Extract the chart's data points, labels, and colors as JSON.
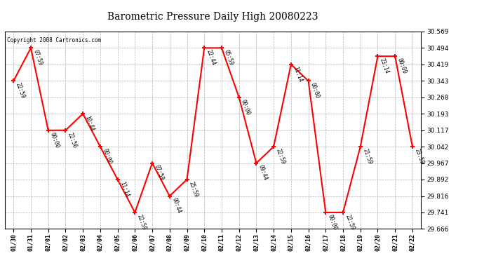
{
  "title": "Barometric Pressure Daily High 20080223",
  "copyright": "Copyright 2008 Cartronics.com",
  "dates": [
    "01/30",
    "01/31",
    "02/01",
    "02/02",
    "02/03",
    "02/04",
    "02/05",
    "02/06",
    "02/07",
    "02/08",
    "02/09",
    "02/10",
    "02/11",
    "02/12",
    "02/13",
    "02/14",
    "02/15",
    "02/16",
    "02/17",
    "02/18",
    "02/19",
    "02/20",
    "02/21",
    "02/22"
  ],
  "values": [
    30.343,
    30.494,
    30.117,
    30.117,
    30.193,
    30.042,
    29.892,
    29.741,
    29.967,
    29.816,
    29.892,
    30.494,
    30.494,
    30.268,
    29.967,
    30.042,
    30.419,
    30.343,
    29.741,
    29.741,
    30.042,
    30.456,
    30.456,
    30.042
  ],
  "point_labels": [
    "22:59",
    "07:59",
    "00:00",
    "22:56",
    "10:44",
    "00:00",
    "11:14",
    "22:59",
    "07:59",
    "00:44",
    "25:59",
    "22:44",
    "05:59",
    "00:00",
    "09:44",
    "22:59",
    "11:14",
    "00:00",
    "00:00",
    "22:59",
    "21:59",
    "23:14",
    "00:00",
    "23:59"
  ],
  "ylim_min": 29.666,
  "ylim_max": 30.569,
  "yticks": [
    29.666,
    29.741,
    29.816,
    29.892,
    29.967,
    30.042,
    30.117,
    30.193,
    30.268,
    30.343,
    30.419,
    30.494,
    30.569
  ],
  "line_color": "red",
  "marker_color": "red",
  "grid_color": "#aaaaaa",
  "bg_color": "white",
  "plot_bg_color": "white",
  "title_fontsize": 10,
  "label_fontsize": 5.5,
  "tick_fontsize": 6.5,
  "xtick_fontsize": 6.0,
  "copyright_fontsize": 5.5
}
